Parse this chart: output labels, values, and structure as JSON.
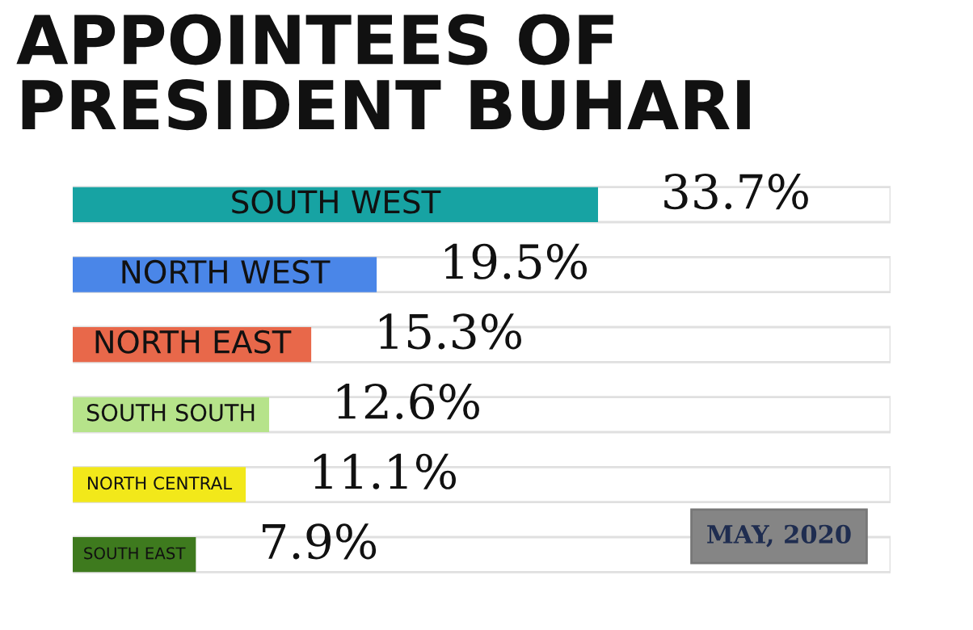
{
  "chart_data": {
    "type": "bar",
    "orientation": "horizontal",
    "title": "APPOINTEES OF\nPRESIDENT BUHARI",
    "categories": [
      "SOUTH WEST",
      "NORTH WEST",
      "NORTH EAST",
      "SOUTH SOUTH",
      "NORTH CENTRAL",
      "SOUTH EAST"
    ],
    "values": [
      33.7,
      19.5,
      15.3,
      12.6,
      11.1,
      7.9
    ],
    "colors": [
      "#17a3a3",
      "#4a86e8",
      "#e8684a",
      "#b6e38a",
      "#f2e81a",
      "#3e7a1e"
    ],
    "value_labels": [
      "33.7%",
      "19.5%",
      "15.3%",
      "12.6%",
      "11.1%",
      "7.9%"
    ],
    "annotations": [
      "MAY, 2020"
    ],
    "legend": false
  }
}
